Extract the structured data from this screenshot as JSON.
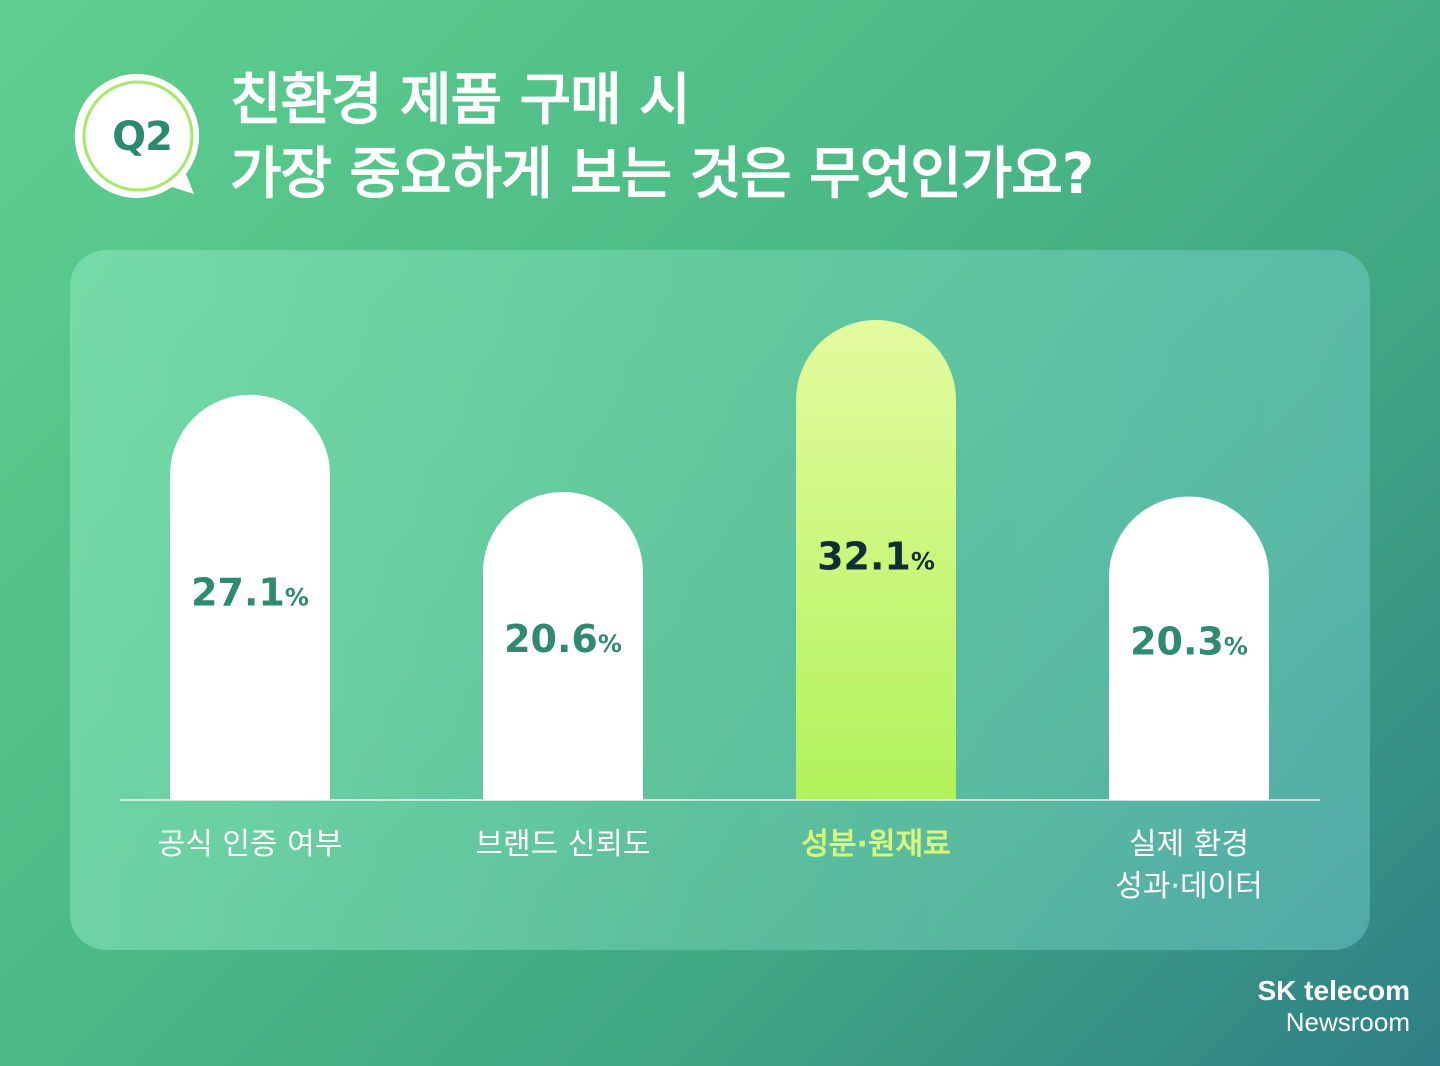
{
  "header": {
    "badge": "Q2",
    "title_line1": "친환경 제품 구매 시",
    "title_line2": "가장 중요하게 보는 것은 무엇인가요?"
  },
  "footer": {
    "brand": "SK telecom",
    "sub": "Newsroom"
  },
  "colors": {
    "bar_default": "#ffffff",
    "bar_highlight_top": "#e4fba0",
    "bar_highlight_bottom": "#b0f25a",
    "value_default": "#2f8a70",
    "value_highlight": "#0f2f33",
    "label_default": "#ffffff",
    "label_highlight": "#d8f77a"
  },
  "chart_data": {
    "type": "bar",
    "categories": [
      "공식 인증 여부",
      "브랜드 신뢰도",
      "성분·원재료",
      "실제 환경\n성과·데이터"
    ],
    "values": [
      27.1,
      20.6,
      32.1,
      20.3
    ],
    "value_labels": [
      "27.1",
      "20.6",
      "32.1",
      "20.3"
    ],
    "unit": "%",
    "highlight_index": 2,
    "ylim": [
      0,
      35
    ],
    "grid": false,
    "legend": "none"
  }
}
